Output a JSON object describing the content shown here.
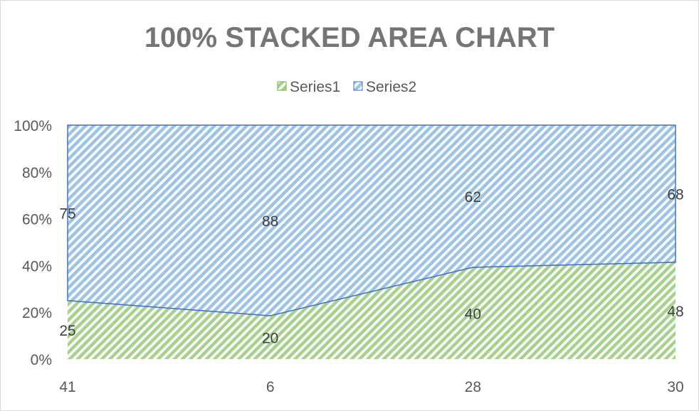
{
  "chart_data": {
    "type": "area",
    "stacking": "percent",
    "title": "100% STACKED AREA CHART",
    "categories": [
      "41",
      "6",
      "28",
      "30"
    ],
    "series": [
      {
        "name": "Series1",
        "values": [
          25,
          20,
          40,
          48
        ],
        "color": "#70ad47"
      },
      {
        "name": "Series2",
        "values": [
          75,
          88,
          62,
          68
        ],
        "color": "#4472c4"
      }
    ],
    "y_ticks": [
      "0%",
      "20%",
      "40%",
      "60%",
      "80%",
      "100%"
    ],
    "ylim": [
      0,
      100
    ],
    "grid": false,
    "legend": "top"
  }
}
